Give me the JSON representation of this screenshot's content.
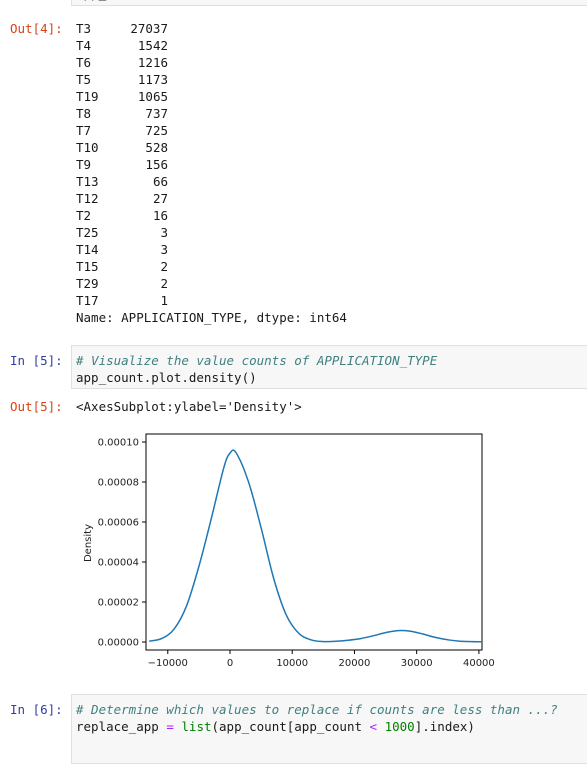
{
  "top_fragment": "app_count",
  "cell4": {
    "out_prompt": "Out[4]:",
    "value_counts": [
      {
        "label": "T3",
        "count": "27037"
      },
      {
        "label": "T4",
        "count": "1542"
      },
      {
        "label": "T6",
        "count": "1216"
      },
      {
        "label": "T5",
        "count": "1173"
      },
      {
        "label": "T19",
        "count": "1065"
      },
      {
        "label": "T8",
        "count": "737"
      },
      {
        "label": "T7",
        "count": "725"
      },
      {
        "label": "T10",
        "count": "528"
      },
      {
        "label": "T9",
        "count": "156"
      },
      {
        "label": "T13",
        "count": "66"
      },
      {
        "label": "T12",
        "count": "27"
      },
      {
        "label": "T2",
        "count": "16"
      },
      {
        "label": "T25",
        "count": "3"
      },
      {
        "label": "T14",
        "count": "3"
      },
      {
        "label": "T15",
        "count": "2"
      },
      {
        "label": "T29",
        "count": "2"
      },
      {
        "label": "T17",
        "count": "1"
      }
    ],
    "dtype_line": "Name: APPLICATION_TYPE, dtype: int64"
  },
  "cell5": {
    "in_prompt": "In [5]:",
    "comment": "# Visualize the value counts of APPLICATION_TYPE",
    "code": "app_count.plot.density()",
    "out_prompt": "Out[5]:",
    "repr": "<AxesSubplot:ylabel='Density'>"
  },
  "cell6": {
    "in_prompt": "In [6]:",
    "comment": "# Determine which values to replace if counts are less than ...?",
    "code_parts": {
      "var": "replace_app",
      "eq": "=",
      "fn": "list",
      "arg_open": "(app_count[app_count",
      "lt": "<",
      "num": "1000",
      "arg_close": "].index)"
    }
  },
  "chart_data": {
    "type": "line",
    "title": "",
    "xlabel": "",
    "ylabel": "Density",
    "xlim": [
      -13500,
      40500
    ],
    "ylim": [
      -4e-06,
      0.000104
    ],
    "x_ticks": [
      -10000,
      0,
      10000,
      20000,
      30000,
      40000
    ],
    "x_tick_labels": [
      "−10000",
      "0",
      "10000",
      "20000",
      "30000",
      "40000"
    ],
    "y_ticks": [
      0,
      2e-05,
      4e-05,
      6e-05,
      8e-05,
      0.0001
    ],
    "y_tick_labels": [
      "0.00000",
      "0.00002",
      "0.00004",
      "0.00006",
      "0.00008",
      "0.00010"
    ],
    "line_color": "#1f77b4",
    "grid": false,
    "series": [
      {
        "x": [
          -13000,
          -11000,
          -9000,
          -7000,
          -5000,
          -3000,
          -1000,
          0,
          1000,
          3000,
          5000,
          7000,
          9000,
          11000,
          13000,
          15000,
          17000,
          19000,
          21000,
          23000,
          25000,
          27000,
          29000,
          31000,
          33000,
          35000,
          37000,
          40500
        ],
        "y": [
          4e-07,
          1.7e-06,
          6.4e-06,
          1.79e-05,
          3.78e-05,
          6.18e-05,
          8.71e-05,
          9.45e-05,
          9.45e-05,
          7.98e-05,
          5.71e-05,
          3.2e-05,
          1.38e-05,
          4.5e-06,
          1.1e-06,
          2e-07,
          4e-07,
          9e-07,
          1.7e-06,
          3.1e-06,
          4.7e-06,
          5.7e-06,
          5.4e-06,
          4e-06,
          2.3e-06,
          1.1e-06,
          4e-07,
          1e-07
        ]
      }
    ]
  }
}
